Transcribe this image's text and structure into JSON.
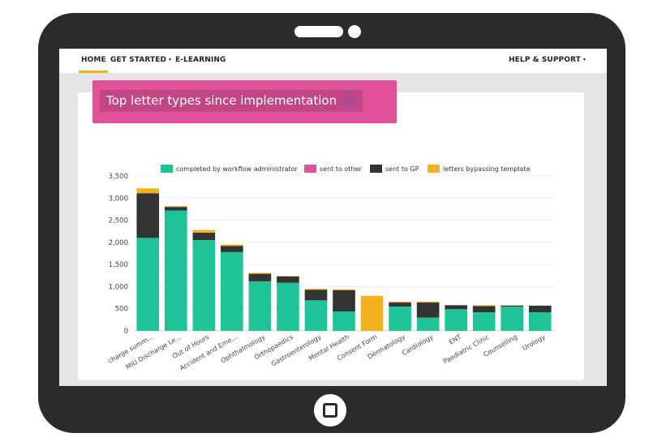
{
  "nav": {
    "home": "HOME",
    "get_started": "GET STARTED",
    "elearning": "E-LEARNING",
    "help": "HELP & SUPPORT",
    "caret": "▾"
  },
  "title": "Top letter types since implementation",
  "info_icon": "ⓘ",
  "colors": {
    "completed": "#1ec397",
    "sent_other": "#e05199",
    "sent_gp": "#333333",
    "bypass": "#f3b21b",
    "accent": "#f3b21b",
    "title_banner": "#e05199"
  },
  "chart_data": {
    "type": "bar",
    "stacked": true,
    "categories": [
      "Discharge summary",
      "MIU Discharge Letter",
      "Out of Hours",
      "Accident and Emergency",
      "Ophthalmology",
      "Orthopaedics",
      "Gastroenterology",
      "Mental Health",
      "Consent Form",
      "Dermatology",
      "Cardiology",
      "ENT",
      "Paediatric Clinic",
      "Counselling",
      "Urology"
    ],
    "category_labels": [
      "charge summ...",
      "MIU Discharge Le...",
      "Out of Hours",
      "Accident and Eme...",
      "Ophthalmology",
      "Orthopaedics",
      "Gastroenterology",
      "Mental Health",
      "Consent Form",
      "Dermatology",
      "Cardiology",
      "ENT",
      "Paediatric Clinic",
      "Counselling",
      "Urology"
    ],
    "series": [
      {
        "name": "completed by workflow administrator",
        "color": "#1ec397",
        "values": [
          2100,
          2720,
          2050,
          1780,
          1120,
          1090,
          690,
          440,
          0,
          550,
          300,
          490,
          420,
          550,
          420
        ]
      },
      {
        "name": "sent to other",
        "color": "#e05199",
        "values": [
          0,
          0,
          0,
          0,
          0,
          0,
          0,
          0,
          0,
          0,
          0,
          0,
          0,
          0,
          0
        ]
      },
      {
        "name": "sent to GP",
        "color": "#333333",
        "values": [
          1010,
          80,
          170,
          140,
          170,
          140,
          240,
          480,
          0,
          90,
          340,
          90,
          140,
          20,
          150
        ]
      },
      {
        "name": "letters bypassing template",
        "color": "#f3b21b",
        "values": [
          110,
          20,
          60,
          30,
          20,
          10,
          20,
          20,
          790,
          20,
          20,
          0,
          20,
          10,
          0
        ]
      }
    ],
    "ylim": [
      0,
      3500
    ],
    "yticks": [
      0,
      500,
      1000,
      1500,
      2000,
      2500,
      3000,
      3500
    ],
    "ytick_labels": [
      "0",
      "500",
      "1,000",
      "1,500",
      "2,000",
      "2,500",
      "3,000",
      "3,500"
    ],
    "grid": true,
    "legend_position": "top"
  }
}
